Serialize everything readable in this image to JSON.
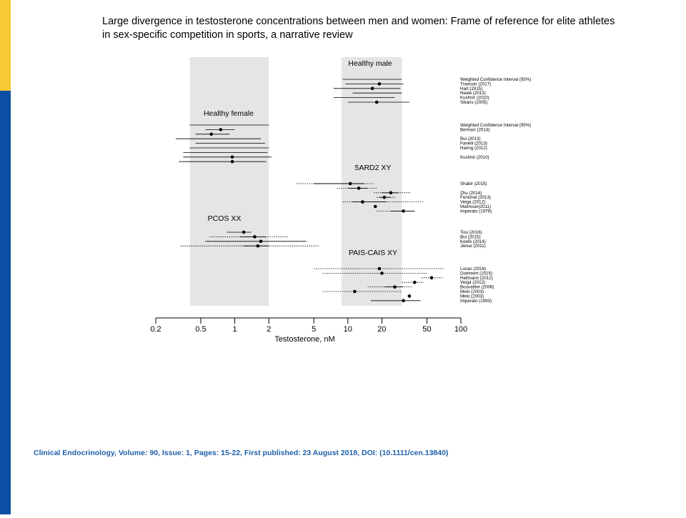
{
  "slide": {
    "title_line1": "Large divergence in testosterone concentrations between men and women: Frame of reference for elite athletes",
    "title_line2": "in sex-specific competition in sports, a narrative review",
    "citation": "Clinical Endocrinology, Volume: 90, Issue: 1, Pages: 15-22, First published: 23 August 2018, DOI: (10.1111/cen.13840)",
    "accent_colors": {
      "yellow": "#F9C933",
      "blue": "#0A4FA4",
      "citation": "#1F5FA8"
    }
  },
  "chart_data": {
    "type": "scatter",
    "subtype": "forest-plot",
    "xlabel": "Testosterone, nM",
    "xscale": "log",
    "xlim": [
      0.2,
      100
    ],
    "xticks": [
      0.2,
      0.5,
      1,
      2,
      5,
      10,
      20,
      50,
      100
    ],
    "xtick_labels": [
      "0.2",
      "0.5",
      "1",
      "2",
      "5",
      "10",
      "20",
      "50",
      "100"
    ],
    "reference_bands": [
      {
        "name": "female-range",
        "low": 0.4,
        "high": 2.0
      },
      {
        "name": "male-range",
        "low": 8.8,
        "high": 30.0
      }
    ],
    "groups": [
      {
        "name": "Healthy male",
        "rows": [
          {
            "label": "Weighted Confidence Interval (95%)",
            "point": null,
            "low": 9.0,
            "high": 30.0,
            "style": "solid"
          },
          {
            "label": "Travison (2017)",
            "point": 19.0,
            "low": 9.5,
            "high": 31.0,
            "style": "solid"
          },
          {
            "label": "Hart (2015)",
            "point": 16.5,
            "low": 7.5,
            "high": 29.0,
            "style": "solid"
          },
          {
            "label": "Neale (2013)",
            "point": null,
            "low": 11.0,
            "high": 30.0,
            "style": "solid"
          },
          {
            "label": "Kushnir (2010)",
            "point": null,
            "low": 7.5,
            "high": 26.0,
            "style": "solid"
          },
          {
            "label": "Sikaris (2005)",
            "point": 18.0,
            "low": 10.0,
            "high": 35.0,
            "style": "solid"
          }
        ]
      },
      {
        "name": "Healthy female",
        "rows": [
          {
            "label": "Weighted Confidence Interval (95%)",
            "point": null,
            "low": 0.4,
            "high": 2.0,
            "style": "solid"
          },
          {
            "label": "Bermon (2014)",
            "point": 0.75,
            "low": 0.55,
            "high": 1.0,
            "style": "solid"
          },
          {
            "label": "",
            "point": 0.62,
            "low": 0.45,
            "high": 0.9,
            "style": "solid"
          },
          {
            "label": "Bui (2013)",
            "point": null,
            "low": 0.3,
            "high": 1.7,
            "style": "solid"
          },
          {
            "label": "Fanelli (2013)",
            "point": null,
            "low": 0.45,
            "high": 1.85,
            "style": "solid"
          },
          {
            "label": "Haring (2012)",
            "point": null,
            "low": 0.4,
            "high": 2.0,
            "style": "solid"
          },
          {
            "label": "",
            "point": null,
            "low": 0.35,
            "high": 1.95,
            "style": "solid"
          },
          {
            "label": "Kushnir (2010)",
            "point": 0.95,
            "low": 0.35,
            "high": 2.1,
            "style": "solid"
          },
          {
            "label": "",
            "point": 0.95,
            "low": 0.32,
            "high": 1.9,
            "style": "solid"
          }
        ]
      },
      {
        "name": "5ARD2 XY",
        "rows": [
          {
            "label": "Shabir (2015)",
            "point": 10.5,
            "low": 3.5,
            "high": 17.0,
            "style": "mixed",
            "solid_low": 5.0,
            "solid_high": 14.0
          },
          {
            "label": "",
            "point": 12.5,
            "low": 8.0,
            "high": 18.0,
            "style": "mixed",
            "solid_low": 10.0,
            "solid_high": 15.0
          },
          {
            "label": "Zhu (2014)",
            "point": 24.0,
            "low": 17.0,
            "high": 36.0,
            "style": "mixed",
            "solid_low": 20.0,
            "solid_high": 28.0
          },
          {
            "label": "Fenichel (2013)",
            "point": 21.0,
            "low": 18.0,
            "high": 26.0,
            "style": "mixed",
            "solid_low": 19.0,
            "solid_high": 24.0
          },
          {
            "label": "Veiga (2012)",
            "point": 13.5,
            "low": 9.0,
            "high": 47.0,
            "style": "mixed",
            "solid_low": 11.0,
            "solid_high": 22.0
          },
          {
            "label": "Maimoun(2011)",
            "point": 17.5,
            "low": null,
            "high": null,
            "style": "point"
          },
          {
            "label": "Imperato (1979)",
            "point": 31.0,
            "low": 18.0,
            "high": 39.0,
            "style": "mixed",
            "solid_low": 24.0,
            "solid_high": 39.0
          }
        ]
      },
      {
        "name": "PCOS XX",
        "rows": [
          {
            "label": "Tosi (2016)",
            "point": 1.2,
            "low": 0.85,
            "high": 1.4,
            "style": "solid"
          },
          {
            "label": "Bui (2015)",
            "point": 1.5,
            "low": 0.6,
            "high": 3.0,
            "style": "mixed",
            "solid_low": 1.1,
            "solid_high": 1.9
          },
          {
            "label": "Keefe (2014)",
            "point": 1.7,
            "low": 0.55,
            "high": 4.3,
            "style": "solid"
          },
          {
            "label": "Janse (2011)",
            "point": 1.6,
            "low": 0.33,
            "high": 5.5,
            "style": "mixed",
            "solid_low": 1.2,
            "solid_high": 2.0
          }
        ]
      },
      {
        "name": "PAIS-CAIS XY",
        "rows": [
          {
            "label": "Lucas (2016)",
            "point": 19.0,
            "low": 5.0,
            "high": 70.0,
            "style": "dotted"
          },
          {
            "label": "Doehnert (2015)",
            "point": 20.0,
            "low": 6.0,
            "high": 50.0,
            "style": "dotted"
          },
          {
            "label": "Hellmann (2012)",
            "point": 55.0,
            "low": 45.0,
            "high": 70.0,
            "style": "dotted"
          },
          {
            "label": "Veiga (2012)",
            "point": 39.0,
            "low": 30.0,
            "high": 47.0,
            "style": "dotted"
          },
          {
            "label": "Bouvattier (2006)",
            "point": 26.0,
            "low": 15.0,
            "high": 37.0,
            "style": "mixed",
            "solid_low": 21.0,
            "solid_high": 31.0
          },
          {
            "label": "Melo (2003)",
            "point": 11.5,
            "low": 6.0,
            "high": 30.0,
            "style": "dotted"
          },
          {
            "label": "Melo (2003)",
            "point": 35.0,
            "low": null,
            "high": null,
            "style": "point"
          },
          {
            "label": "Imperato  (1993)",
            "point": 31.0,
            "low": 16.0,
            "high": 44.0,
            "style": "solid"
          }
        ]
      }
    ]
  }
}
